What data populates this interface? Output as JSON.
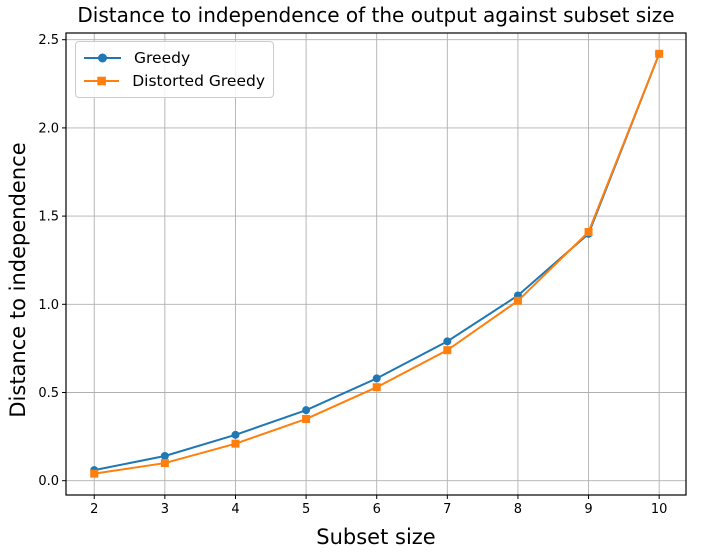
{
  "chart_data": {
    "type": "line",
    "title": "Distance to independence of the output against subset size",
    "xlabel": "Subset size",
    "ylabel": "Distance to independence",
    "x": [
      2,
      3,
      4,
      5,
      6,
      7,
      8,
      9,
      10
    ],
    "series": [
      {
        "name": "Greedy",
        "color": "#1f77b4",
        "marker": "circle",
        "values": [
          0.06,
          0.14,
          0.26,
          0.4,
          0.58,
          0.79,
          1.05,
          1.4,
          2.42
        ]
      },
      {
        "name": "Distorted Greedy",
        "color": "#ff7f0e",
        "marker": "square",
        "values": [
          0.04,
          0.1,
          0.21,
          0.35,
          0.53,
          0.74,
          1.02,
          1.41,
          2.42
        ]
      }
    ],
    "xlim": [
      1.6,
      10.38
    ],
    "ylim": [
      -0.081,
      2.538
    ],
    "xticks": {
      "values": [
        2,
        3,
        4,
        5,
        6,
        7,
        8,
        9,
        10
      ],
      "labels": [
        "2",
        "3",
        "4",
        "5",
        "6",
        "7",
        "8",
        "9",
        "10"
      ]
    },
    "yticks": {
      "values": [
        0.0,
        0.5,
        1.0,
        1.5,
        2.0,
        2.5
      ],
      "labels": [
        "0.0",
        "0.5",
        "1.0",
        "1.5",
        "2.0",
        "2.5"
      ]
    },
    "grid": true,
    "grid_color": "#b0b0b0",
    "spine_color": "#000000",
    "tick_label_color": "#000000",
    "legend": {
      "position": "upper left",
      "labels": [
        "Greedy",
        "Distorted Greedy"
      ]
    }
  }
}
